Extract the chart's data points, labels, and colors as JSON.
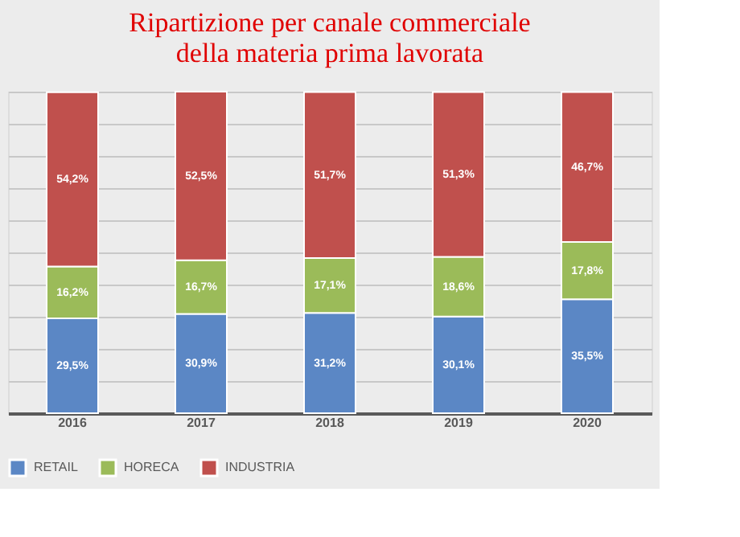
{
  "chart_data": {
    "type": "bar",
    "title": [
      "Ripartizione per canale commerciale",
      "della materia prima lavorata"
    ],
    "categories": [
      "2016",
      "2017",
      "2018",
      "2019",
      "2020"
    ],
    "stacked": true,
    "series": [
      {
        "name": "RETAIL",
        "color": "#5b87c5",
        "values": [
          29.5,
          30.9,
          31.2,
          30.1,
          35.5
        ],
        "value_labels": [
          "29,5%",
          "30,9%",
          "31,2%",
          "30,1%",
          "35,5%"
        ]
      },
      {
        "name": "HORECA",
        "color": "#9bbb59",
        "values": [
          16.2,
          16.7,
          17.1,
          18.6,
          17.8
        ],
        "value_labels": [
          "16,2%",
          "16,7%",
          "17,1%",
          "18,6%",
          "17,8%"
        ]
      },
      {
        "name": "INDUSTRIA",
        "color": "#c0504d",
        "values": [
          54.2,
          52.5,
          51.7,
          51.3,
          46.7
        ],
        "value_labels": [
          "54,2%",
          "52,5%",
          "51,7%",
          "51,3%",
          "46,7%"
        ]
      }
    ],
    "tick_labels": "x",
    "grid": "y",
    "legend": "bottom"
  }
}
